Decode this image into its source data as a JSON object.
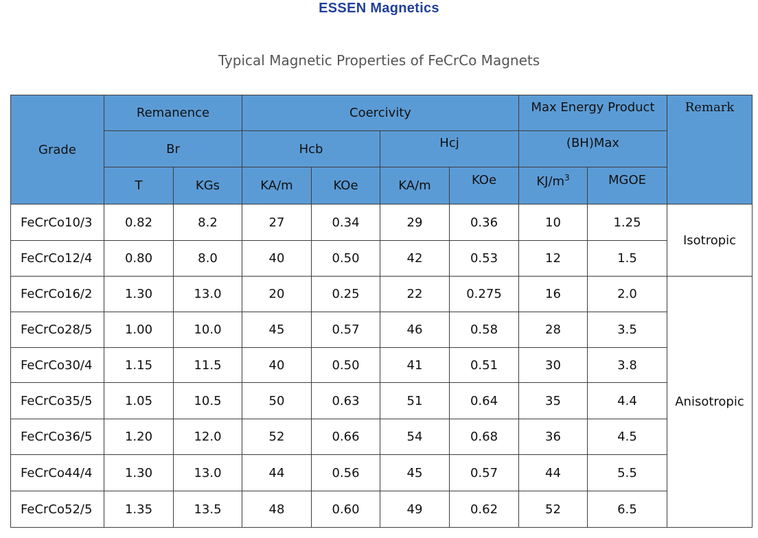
{
  "brand": "ESSEN Magnetics",
  "title": "Typical Magnetic Properties of FeCrCo Magnets",
  "header": {
    "grade": "Grade",
    "remanence": "Remanence",
    "coercivity": "Coercivity",
    "max_energy_product": "Max Energy Product",
    "remark": "Remark",
    "br": "Br",
    "hcb": "Hcb",
    "hcj": "Hcj",
    "bhmax": "(BH)Max",
    "units": {
      "t": "T",
      "kgs": "KGs",
      "hcb_kam": "KA/m",
      "hcb_koe": "KOe",
      "hcj_kam": "KA/m",
      "hcj_koe": "KOe",
      "kjm_base": "KJ/m",
      "kjm_sup": "3",
      "mgoe": "MGOE"
    }
  },
  "rows": [
    {
      "grade": "FeCrCo10/3",
      "t": "0.82",
      "kgs": "8.2",
      "hcb_kam": "27",
      "hcb_koe": "0.34",
      "hcj_kam": "29",
      "hcj_koe": "0.36",
      "kjm3": "10",
      "mgoe": "1.25"
    },
    {
      "grade": "FeCrCo12/4",
      "t": "0.80",
      "kgs": "8.0",
      "hcb_kam": "40",
      "hcb_koe": "0.50",
      "hcj_kam": "42",
      "hcj_koe": "0.53",
      "kjm3": "12",
      "mgoe": "1.5"
    },
    {
      "grade": "FeCrCo16/2",
      "t": "1.30",
      "kgs": "13.0",
      "hcb_kam": "20",
      "hcb_koe": "0.25",
      "hcj_kam": "22",
      "hcj_koe": "0.275",
      "kjm3": "16",
      "mgoe": "2.0"
    },
    {
      "grade": "FeCrCo28/5",
      "t": "1.00",
      "kgs": "10.0",
      "hcb_kam": "45",
      "hcb_koe": "0.57",
      "hcj_kam": "46",
      "hcj_koe": "0.58",
      "kjm3": "28",
      "mgoe": "3.5"
    },
    {
      "grade": "FeCrCo30/4",
      "t": "1.15",
      "kgs": "11.5",
      "hcb_kam": "40",
      "hcb_koe": "0.50",
      "hcj_kam": "41",
      "hcj_koe": "0.51",
      "kjm3": "30",
      "mgoe": "3.8"
    },
    {
      "grade": "FeCrCo35/5",
      "t": "1.05",
      "kgs": "10.5",
      "hcb_kam": "50",
      "hcb_koe": "0.63",
      "hcj_kam": "51",
      "hcj_koe": "0.64",
      "kjm3": "35",
      "mgoe": "4.4"
    },
    {
      "grade": "FeCrCo36/5",
      "t": "1.20",
      "kgs": "12.0",
      "hcb_kam": "52",
      "hcb_koe": "0.66",
      "hcj_kam": "54",
      "hcj_koe": "0.68",
      "kjm3": "36",
      "mgoe": "4.5"
    },
    {
      "grade": "FeCrCo44/4",
      "t": "1.30",
      "kgs": "13.0",
      "hcb_kam": "44",
      "hcb_koe": "0.56",
      "hcj_kam": "45",
      "hcj_koe": "0.57",
      "kjm3": "44",
      "mgoe": "5.5"
    },
    {
      "grade": "FeCrCo52/5",
      "t": "1.35",
      "kgs": "13.5",
      "hcb_kam": "48",
      "hcb_koe": "0.60",
      "hcj_kam": "49",
      "hcj_koe": "0.62",
      "kjm3": "52",
      "mgoe": "6.5"
    }
  ],
  "remarks": {
    "isotropic": "Isotropic",
    "anisotropic": "Anisotropic"
  }
}
